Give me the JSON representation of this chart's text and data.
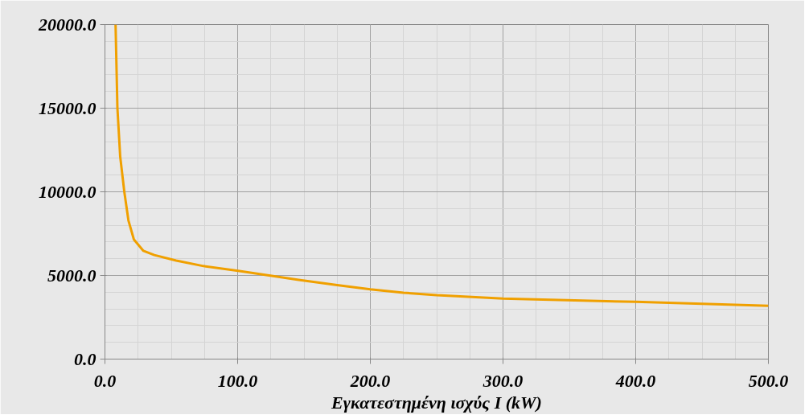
{
  "chart_data": {
    "type": "line",
    "xlabel": "Εγκατεστημένη ισχύς I (kW)",
    "x": [
      8.0,
      9.4,
      11.5,
      14.6,
      17.7,
      21.8,
      29,
      37.2,
      53.7,
      74.3,
      100.4,
      125.7,
      146,
      175,
      200,
      225,
      250,
      300,
      400,
      500
    ],
    "series": [
      {
        "color": "#f0a000",
        "values": [
          20000,
          15000,
          12110,
          10000,
          8290,
          7150,
          6470,
          6220,
          5890,
          5560,
          5280,
          4980,
          4740,
          4420,
          4170,
          3970,
          3820,
          3620,
          3420,
          3180
        ]
      }
    ],
    "xlim": [
      0,
      500
    ],
    "ylim": [
      0,
      20000
    ],
    "xticks": [
      {
        "value": 0,
        "label": "0.0"
      },
      {
        "value": 100,
        "label": "100.0"
      },
      {
        "value": 200,
        "label": "200.0"
      },
      {
        "value": 300,
        "label": "300.0"
      },
      {
        "value": 400,
        "label": "400.0"
      },
      {
        "value": 500,
        "label": "500.0"
      }
    ],
    "yticks": [
      {
        "value": 0,
        "label": "0.0"
      },
      {
        "value": 5000,
        "label": "5000.0"
      },
      {
        "value": 10000,
        "label": "10000.0"
      },
      {
        "value": 15000,
        "label": "15000.0"
      },
      {
        "value": 20000,
        "label": "20000.0"
      }
    ],
    "grid": true,
    "marker": "none",
    "line_style": "solid"
  }
}
